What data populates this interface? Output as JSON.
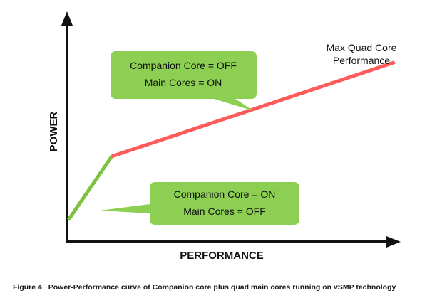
{
  "chart_data": {
    "type": "line",
    "title": "",
    "xlabel": "PERFORMANCE",
    "ylabel": "POWER",
    "xlim": [
      0,
      10
    ],
    "ylim": [
      0,
      10
    ],
    "grid": false,
    "series": [
      {
        "name": "Companion core",
        "color": "#7dc242",
        "x": [
          0,
          1.32
        ],
        "y": [
          1.0,
          3.9
        ]
      },
      {
        "name": "Quad main cores",
        "color": "#ff5b5b",
        "x": [
          1.32,
          9.95
        ],
        "y": [
          3.9,
          8.2
        ]
      }
    ],
    "annotations": [
      {
        "id": "companion-off",
        "lines": [
          "Companion Core = OFF",
          "Main Cores = ON"
        ]
      },
      {
        "id": "companion-on",
        "lines": [
          "Companion Core = ON",
          "Main Cores = OFF"
        ]
      },
      {
        "id": "max-quad",
        "lines": [
          "Max Quad Core",
          "Performance"
        ]
      }
    ]
  },
  "caption": {
    "number": "Figure 4",
    "text": "Power-Performance curve of Companion core plus quad main cores running on vSMP technology"
  },
  "colors": {
    "callout_fill": "#8ccf52",
    "axis": "#111111"
  }
}
